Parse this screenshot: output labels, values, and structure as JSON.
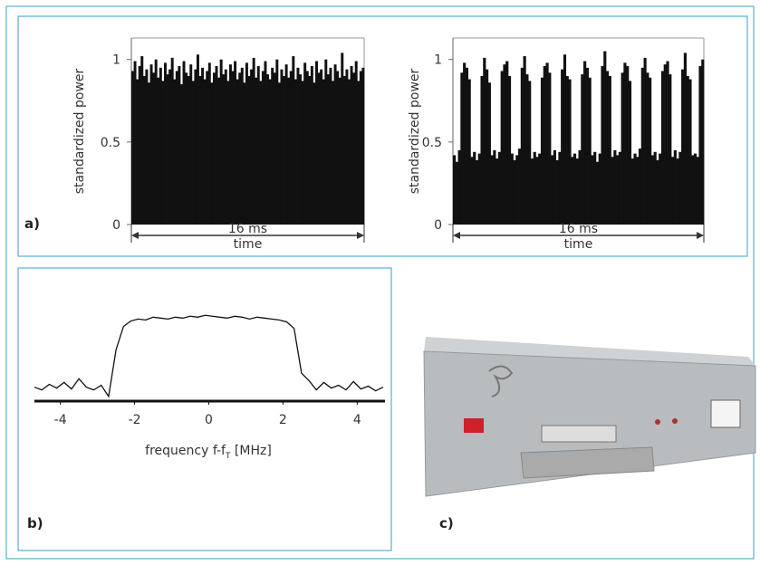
{
  "chart_data": [
    {
      "type": "bar",
      "panel_label": "a)",
      "ylabel": "standardized power",
      "xlabel": "time",
      "span_label": "16 ms",
      "ylim": [
        0,
        1.13
      ],
      "yticks": [
        0,
        0.5,
        1
      ],
      "color": "#111",
      "values": [
        0.93,
        0.99,
        0.88,
        0.96,
        1.02,
        0.9,
        0.94,
        0.86,
        0.97,
        0.92,
        1.0,
        0.89,
        0.95,
        0.87,
        0.98,
        0.91,
        0.94,
        1.01,
        0.88,
        0.93,
        0.96,
        0.85,
        0.99,
        0.92,
        0.9,
        0.97,
        0.87,
        0.94,
        1.03,
        0.9,
        0.95,
        0.88,
        0.93,
        0.98,
        0.86,
        0.92,
        0.96,
        0.89,
        1.0,
        0.91,
        0.94,
        0.87,
        0.97,
        0.93,
        0.99,
        0.88,
        0.92,
        0.95,
        0.86,
        0.98,
        0.9,
        0.94,
        1.01,
        0.89,
        0.96,
        0.87,
        0.93,
        0.99,
        0.91,
        0.88,
        0.95,
        0.92,
        1.0,
        0.86,
        0.94,
        0.9,
        0.97,
        0.89,
        0.93,
        1.02,
        0.88,
        0.95,
        0.91,
        0.87,
        0.98,
        0.93,
        0.9,
        0.96,
        0.86,
        0.99,
        0.92,
        0.94,
        0.88,
        1.0,
        0.91,
        0.95,
        0.87,
        0.97,
        0.93,
        0.89,
        1.04,
        0.9,
        0.94,
        0.88,
        0.96,
        0.92,
        0.99,
        0.87,
        0.93,
        0.95
      ]
    },
    {
      "type": "bar",
      "ylabel": "standardized power",
      "xlabel": "time",
      "span_label": "16 ms",
      "ylim": [
        0,
        1.13
      ],
      "yticks": [
        0,
        0.5,
        1
      ],
      "color": "#111",
      "values": [
        0.42,
        0.38,
        0.45,
        0.92,
        0.98,
        0.95,
        0.88,
        0.41,
        0.44,
        0.39,
        0.43,
        0.9,
        1.01,
        0.94,
        0.86,
        0.42,
        0.45,
        0.4,
        0.44,
        0.93,
        0.97,
        0.99,
        0.9,
        0.43,
        0.39,
        0.42,
        0.46,
        0.95,
        1.02,
        0.91,
        0.87,
        0.4,
        0.44,
        0.41,
        0.43,
        0.89,
        0.96,
        0.98,
        0.92,
        0.42,
        0.45,
        0.39,
        0.44,
        0.94,
        1.03,
        0.9,
        0.88,
        0.41,
        0.43,
        0.4,
        0.45,
        0.91,
        0.99,
        0.95,
        0.89,
        0.42,
        0.44,
        0.38,
        0.43,
        0.96,
        1.05,
        0.93,
        0.9,
        0.41,
        0.45,
        0.42,
        0.44,
        0.92,
        0.98,
        0.96,
        0.87,
        0.4,
        0.43,
        0.41,
        0.46,
        0.95,
        1.01,
        0.92,
        0.89,
        0.42,
        0.44,
        0.39,
        0.43,
        0.93,
        0.97,
        0.99,
        0.91,
        0.41,
        0.45,
        0.4,
        0.44,
        0.94,
        1.04,
        0.9,
        0.88,
        0.42,
        0.43,
        0.41,
        0.96,
        1.0
      ]
    },
    {
      "type": "line",
      "panel_label": "b)",
      "xlabel_parts": [
        "frequency f-f",
        "T",
        " [MHz]"
      ],
      "xlim": [
        -4.7,
        4.75
      ],
      "xticks": [
        -4,
        -2,
        0,
        2,
        4
      ],
      "ylim": [
        0,
        1
      ],
      "color": "#111",
      "x": [
        -4.7,
        -4.5,
        -4.3,
        -4.1,
        -3.9,
        -3.7,
        -3.5,
        -3.3,
        -3.1,
        -2.9,
        -2.7,
        -2.5,
        -2.3,
        -2.1,
        -1.9,
        -1.7,
        -1.5,
        -1.3,
        -1.1,
        -0.9,
        -0.7,
        -0.5,
        -0.3,
        -0.1,
        0.1,
        0.3,
        0.5,
        0.7,
        0.9,
        1.1,
        1.3,
        1.5,
        1.7,
        1.9,
        2.1,
        2.3,
        2.5,
        2.7,
        2.9,
        3.1,
        3.3,
        3.5,
        3.7,
        3.9,
        4.1,
        4.3,
        4.5,
        4.7
      ],
      "values": [
        0.15,
        0.12,
        0.18,
        0.14,
        0.2,
        0.13,
        0.24,
        0.15,
        0.12,
        0.17,
        0.05,
        0.55,
        0.8,
        0.86,
        0.88,
        0.87,
        0.9,
        0.89,
        0.88,
        0.9,
        0.89,
        0.91,
        0.9,
        0.92,
        0.91,
        0.9,
        0.89,
        0.91,
        0.9,
        0.88,
        0.9,
        0.89,
        0.88,
        0.87,
        0.85,
        0.78,
        0.3,
        0.22,
        0.12,
        0.2,
        0.14,
        0.17,
        0.12,
        0.21,
        0.13,
        0.16,
        0.11,
        0.15
      ]
    }
  ],
  "photo": {
    "label": "c)"
  }
}
